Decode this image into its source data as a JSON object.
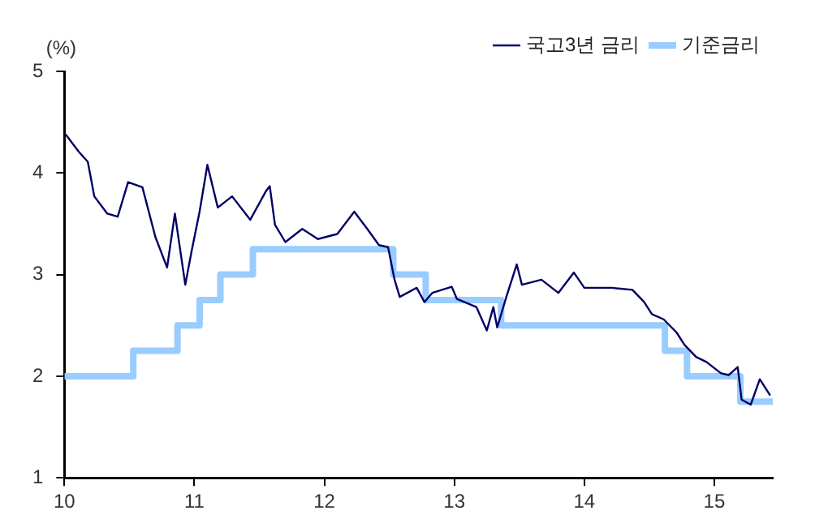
{
  "chart_data": {
    "type": "line",
    "ylabel": "(%)",
    "xlim": [
      2010,
      2015.45
    ],
    "xticks": [
      {
        "value": 2010,
        "label": "10"
      },
      {
        "value": 2011,
        "label": "11"
      },
      {
        "value": 2012,
        "label": "12"
      },
      {
        "value": 2013,
        "label": "13"
      },
      {
        "value": 2014,
        "label": "14"
      },
      {
        "value": 2015,
        "label": "15"
      }
    ],
    "ylim": [
      1,
      5
    ],
    "yticks": [
      1,
      2,
      3,
      4,
      5
    ],
    "grid": false,
    "legend": "top right",
    "marker": "none",
    "series": [
      {
        "name": "국고3년 금리",
        "type": "line",
        "color": "#000066",
        "x": [
          2010.01,
          2010.11,
          2010.18,
          2010.23,
          2010.33,
          2010.41,
          2010.49,
          2010.6,
          2010.7,
          2010.79,
          2010.85,
          2010.93,
          2010.98,
          2011.04,
          2011.1,
          2011.18,
          2011.29,
          2011.43,
          2011.55,
          2011.58,
          2011.62,
          2011.7,
          2011.83,
          2011.95,
          2012.1,
          2012.23,
          2012.33,
          2012.42,
          2012.49,
          2012.54,
          2012.58,
          2012.71,
          2012.77,
          2012.83,
          2012.98,
          2013.02,
          2013.17,
          2013.25,
          2013.3,
          2013.33,
          2013.4,
          2013.48,
          2013.52,
          2013.67,
          2013.8,
          2013.92,
          2014.0,
          2014.21,
          2014.37,
          2014.46,
          2014.52,
          2014.61,
          2014.71,
          2014.77,
          2014.86,
          2014.94,
          2015.05,
          2015.11,
          2015.18,
          2015.21,
          2015.28,
          2015.35,
          2015.43
        ],
        "values": [
          4.38,
          4.21,
          4.11,
          3.77,
          3.6,
          3.57,
          3.91,
          3.86,
          3.37,
          3.07,
          3.6,
          2.9,
          3.24,
          3.62,
          4.08,
          3.66,
          3.77,
          3.54,
          3.82,
          3.87,
          3.49,
          3.32,
          3.45,
          3.35,
          3.4,
          3.62,
          3.45,
          3.29,
          3.27,
          2.95,
          2.78,
          2.87,
          2.73,
          2.82,
          2.88,
          2.76,
          2.68,
          2.45,
          2.68,
          2.48,
          2.78,
          3.1,
          2.9,
          2.95,
          2.82,
          3.02,
          2.87,
          2.87,
          2.85,
          2.73,
          2.61,
          2.56,
          2.43,
          2.31,
          2.19,
          2.14,
          2.03,
          2.01,
          2.09,
          1.77,
          1.72,
          1.97,
          1.81
        ]
      },
      {
        "name": "기준금리",
        "type": "step",
        "color": "#99ccff",
        "x": [
          2010.0,
          2010.53,
          2010.87,
          2011.04,
          2011.2,
          2011.45,
          2012.53,
          2012.78,
          2013.36,
          2014.62,
          2014.79,
          2015.2,
          2015.45
        ],
        "values": [
          2.0,
          2.25,
          2.5,
          2.75,
          3.0,
          3.25,
          3.0,
          2.75,
          2.5,
          2.25,
          2.0,
          1.75,
          1.75
        ]
      }
    ]
  }
}
